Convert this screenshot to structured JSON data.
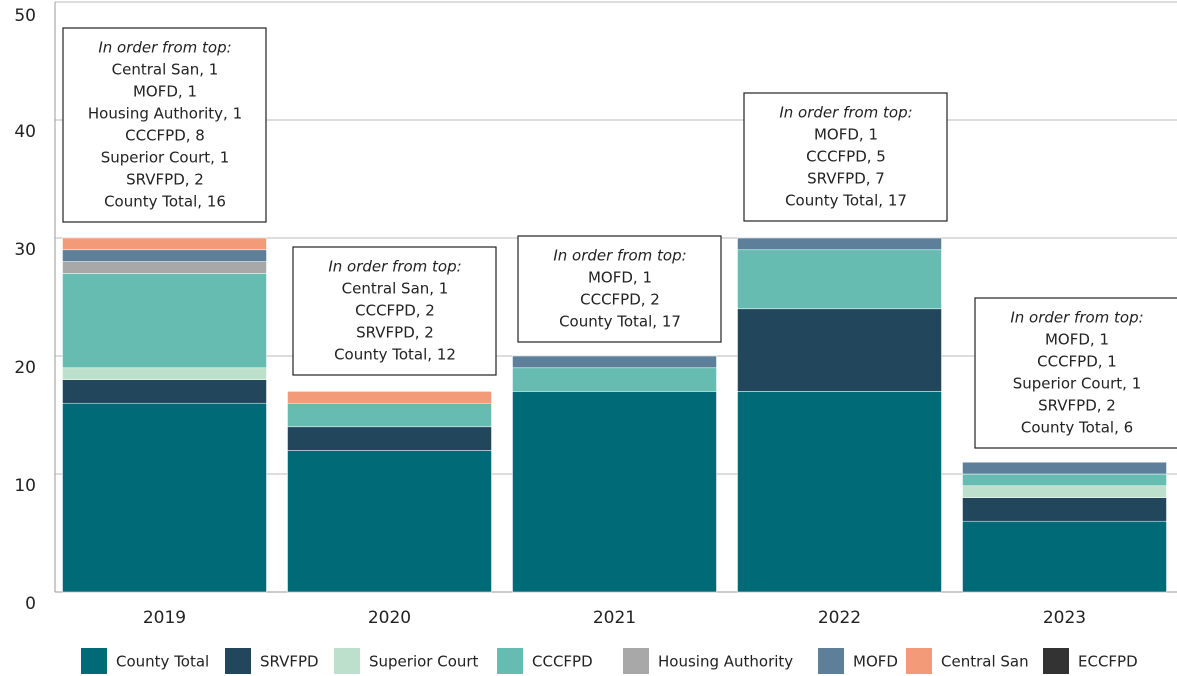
{
  "chart_data": {
    "type": "stacked_bar",
    "categories": [
      "2019",
      "2020",
      "2021",
      "2022",
      "2023"
    ],
    "series": [
      {
        "name": "County Total",
        "color": "#006a76",
        "values": [
          16,
          12,
          17,
          17,
          6
        ]
      },
      {
        "name": "SRVFPD",
        "color": "#22475c",
        "values": [
          2,
          2,
          0,
          7,
          2
        ]
      },
      {
        "name": "Superior Court",
        "color": "#bde0cc",
        "values": [
          1,
          0,
          0,
          0,
          1
        ]
      },
      {
        "name": "CCCFPD",
        "color": "#66bcb0",
        "values": [
          8,
          2,
          2,
          5,
          1
        ]
      },
      {
        "name": "Housing Authority",
        "color": "#a8a8a8",
        "values": [
          1,
          0,
          0,
          0,
          0
        ]
      },
      {
        "name": "MOFD",
        "color": "#5e7f99",
        "values": [
          1,
          0,
          1,
          1,
          1
        ]
      },
      {
        "name": "Central San",
        "color": "#f39a78",
        "values": [
          1,
          1,
          0,
          0,
          0
        ]
      },
      {
        "name": "ECCFPD",
        "color": "#333333",
        "values": [
          0,
          0,
          0,
          0,
          0
        ]
      }
    ],
    "ylim": [
      0,
      50
    ],
    "yticks": [
      0,
      10,
      20,
      30,
      40,
      50
    ],
    "grid": true,
    "annotations": [
      {
        "heading": "In order from top:",
        "lines": [
          "Central San, 1",
          "MOFD, 1",
          "Housing Authority, 1",
          "CCCFPD, 8",
          "Superior Court, 1",
          "SRVFPD, 2",
          "County Total, 16"
        ]
      },
      {
        "heading": "In order from top:",
        "lines": [
          "Central San, 1",
          "CCCFPD, 2",
          "SRVFPD, 2",
          "County Total, 12"
        ]
      },
      {
        "heading": "In order from top:",
        "lines": [
          "MOFD, 1",
          "CCCFPD, 2",
          "County Total, 17"
        ]
      },
      {
        "heading": "In order from top:",
        "lines": [
          "MOFD, 1",
          "CCCFPD, 5",
          "SRVFPD, 7",
          "County Total, 17"
        ]
      },
      {
        "heading": "In order from top:",
        "lines": [
          "MOFD, 1",
          "CCCFPD, 1",
          "Superior Court, 1",
          "SRVFPD, 2",
          "County Total, 6"
        ]
      }
    ]
  }
}
